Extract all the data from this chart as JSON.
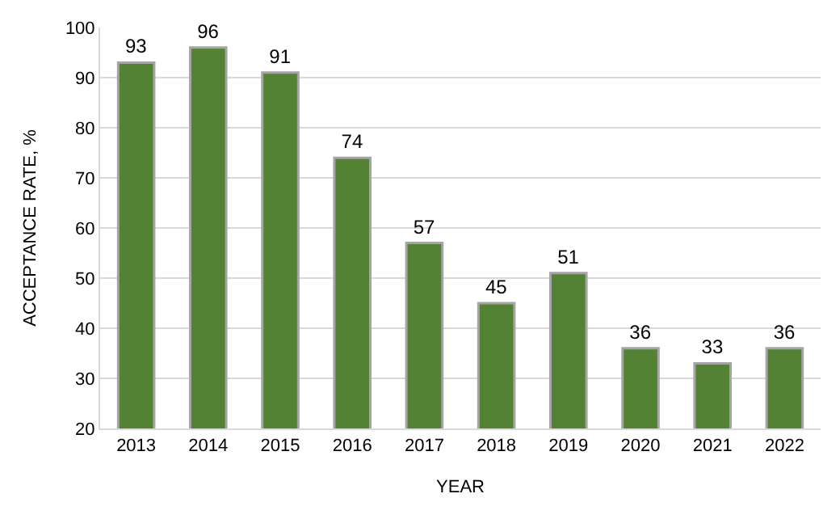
{
  "chart_data": {
    "type": "bar",
    "xlabel": "YEAR",
    "ylabel": "ACCEPTANCE RATE, %",
    "categories": [
      "2013",
      "2014",
      "2015",
      "2016",
      "2017",
      "2018",
      "2019",
      "2020",
      "2021",
      "2022"
    ],
    "values": [
      93,
      96,
      91,
      74,
      57,
      45,
      51,
      36,
      33,
      36
    ],
    "color": "#548235",
    "ylim": [
      20,
      100
    ],
    "yticks": [
      20,
      30,
      40,
      50,
      60,
      70,
      80,
      90,
      100
    ],
    "grid": "y",
    "data_labels": true
  }
}
